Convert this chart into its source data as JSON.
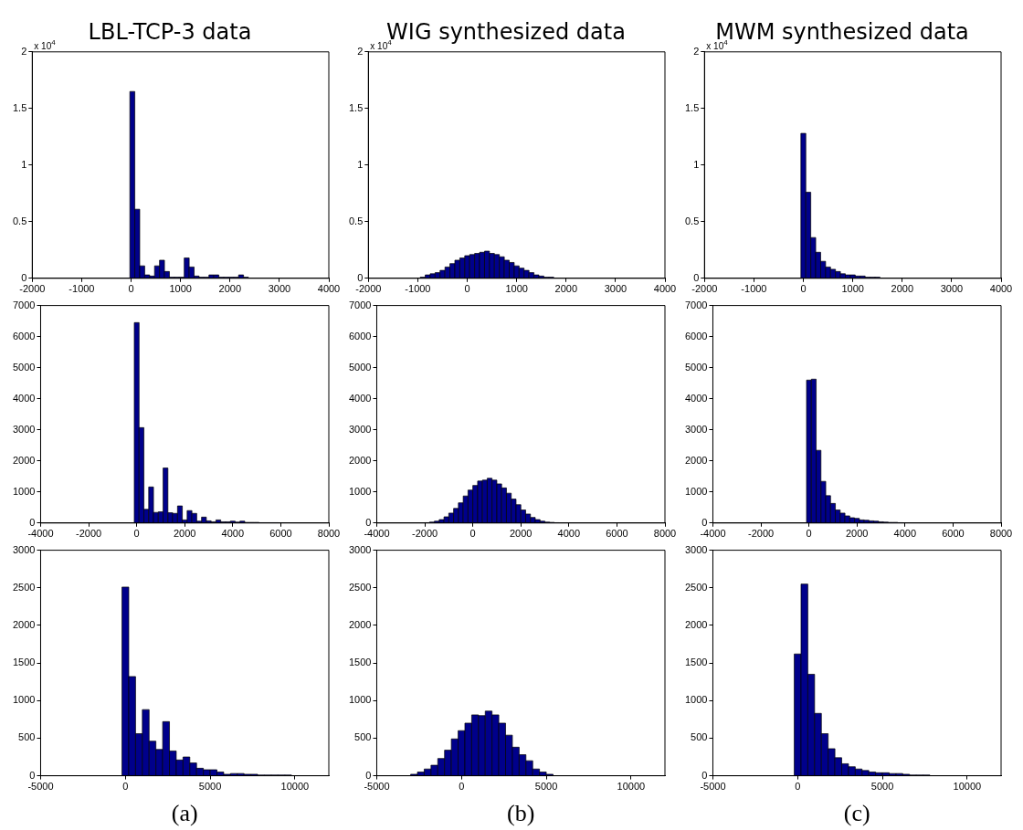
{
  "chart_data": [
    {
      "type": "histogram",
      "title": "LBL-TCP-3 data",
      "annotations": [
        "x 10$^{4}$"
      ],
      "color": "#00008b",
      "grid": false,
      "xlim": [
        -2000,
        4000
      ],
      "xticks": [
        -2000,
        -1000,
        0,
        1000,
        2000,
        3000,
        4000
      ],
      "ylim": [
        0,
        2
      ],
      "yticks": [
        0,
        0.5,
        1,
        1.5,
        2
      ],
      "bins": [
        -25,
        75,
        175,
        275,
        375,
        475,
        575,
        675,
        775,
        875,
        975,
        1075,
        1175,
        1275,
        1375,
        1475,
        1575,
        1675,
        1775,
        1875,
        1975,
        2075,
        2175,
        2275,
        2375
      ],
      "values": [
        1.65,
        0.61,
        0.11,
        0.03,
        0.02,
        0.11,
        0.16,
        0.06,
        0.01,
        0.01,
        0.01,
        0.18,
        0.1,
        0.02,
        0.01,
        0.01,
        0.03,
        0.03,
        0.01,
        0.01,
        0.01,
        0.01,
        0.03,
        0.01
      ]
    },
    {
      "type": "histogram",
      "title": "WIG synthesized data",
      "annotations": [
        "x 10$^{4}$"
      ],
      "color": "#00008b",
      "grid": false,
      "xlim": [
        -2000,
        4000
      ],
      "xticks": [
        -2000,
        -1000,
        0,
        1000,
        2000,
        3000,
        4000
      ],
      "ylim": [
        0,
        2
      ],
      "yticks": [
        0,
        0.5,
        1,
        1.5,
        2
      ],
      "bins": [
        -950,
        -850,
        -750,
        -650,
        -550,
        -450,
        -350,
        -250,
        -150,
        -50,
        50,
        150,
        250,
        350,
        450,
        550,
        650,
        750,
        850,
        950,
        1050,
        1150,
        1250,
        1350,
        1450,
        1550,
        1650,
        1750
      ],
      "values": [
        0.01,
        0.03,
        0.04,
        0.05,
        0.07,
        0.1,
        0.13,
        0.16,
        0.18,
        0.2,
        0.21,
        0.22,
        0.23,
        0.24,
        0.22,
        0.21,
        0.19,
        0.16,
        0.14,
        0.11,
        0.09,
        0.07,
        0.05,
        0.03,
        0.02,
        0.01,
        0.01
      ]
    },
    {
      "type": "histogram",
      "title": "MWM synthesized data",
      "annotations": [
        "x 10$^{4}$"
      ],
      "color": "#00008b",
      "grid": false,
      "xlim": [
        -2000,
        4000
      ],
      "xticks": [
        -2000,
        -1000,
        0,
        1000,
        2000,
        3000,
        4000
      ],
      "ylim": [
        0,
        2
      ],
      "yticks": [
        0,
        0.5,
        1,
        1.5,
        2
      ],
      "bins": [
        -50,
        50,
        150,
        250,
        350,
        450,
        550,
        650,
        750,
        850,
        950,
        1050,
        1150,
        1250,
        1350,
        1450,
        1550
      ],
      "values": [
        1.28,
        0.76,
        0.36,
        0.23,
        0.15,
        0.1,
        0.08,
        0.06,
        0.04,
        0.03,
        0.03,
        0.02,
        0.02,
        0.01,
        0.01,
        0.01
      ]
    },
    {
      "type": "histogram",
      "color": "#00008b",
      "grid": false,
      "xlim": [
        -4000,
        8000
      ],
      "xticks": [
        -4000,
        -2000,
        0,
        2000,
        4000,
        6000,
        8000
      ],
      "ylim": [
        0,
        7000
      ],
      "yticks": [
        0,
        1000,
        2000,
        3000,
        4000,
        5000,
        6000,
        7000
      ],
      "bins": [
        -100,
        100,
        300,
        500,
        700,
        900,
        1100,
        1300,
        1500,
        1700,
        1900,
        2100,
        2300,
        2500,
        2700,
        2900,
        3100,
        3300,
        3500,
        3700,
        3900,
        4100,
        4300,
        4500,
        4700,
        4900,
        5100,
        5300,
        5500,
        5700,
        5900
      ],
      "values": [
        6450,
        3070,
        440,
        1160,
        340,
        360,
        1770,
        330,
        310,
        550,
        100,
        400,
        310,
        60,
        190,
        70,
        40,
        100,
        40,
        40,
        60,
        30,
        60,
        20,
        20,
        20,
        10,
        10,
        10,
        10
      ]
    },
    {
      "type": "histogram",
      "color": "#00008b",
      "grid": false,
      "xlim": [
        -4000,
        8000
      ],
      "xticks": [
        -4000,
        -2000,
        0,
        2000,
        4000,
        6000,
        8000
      ],
      "ylim": [
        0,
        7000
      ],
      "yticks": [
        0,
        1000,
        2000,
        3000,
        4000,
        5000,
        6000,
        7000
      ],
      "bins": [
        -2000,
        -1800,
        -1600,
        -1400,
        -1200,
        -1000,
        -800,
        -600,
        -400,
        -200,
        0,
        200,
        400,
        600,
        800,
        1000,
        1200,
        1400,
        1600,
        1800,
        2000,
        2200,
        2400,
        2600,
        2800,
        3000,
        3200,
        3400,
        3600
      ],
      "values": [
        10,
        30,
        60,
        110,
        200,
        320,
        470,
        650,
        870,
        1060,
        1210,
        1350,
        1380,
        1440,
        1380,
        1260,
        1130,
        960,
        770,
        590,
        420,
        290,
        180,
        110,
        60,
        30,
        20,
        10
      ]
    },
    {
      "type": "histogram",
      "color": "#00008b",
      "grid": false,
      "xlim": [
        -4000,
        8000
      ],
      "xticks": [
        -4000,
        -2000,
        0,
        2000,
        4000,
        6000,
        8000
      ],
      "ylim": [
        0,
        7000
      ],
      "yticks": [
        0,
        1000,
        2000,
        3000,
        4000,
        5000,
        6000,
        7000
      ],
      "bins": [
        -100,
        100,
        300,
        500,
        700,
        900,
        1100,
        1300,
        1500,
        1700,
        1900,
        2100,
        2300,
        2500,
        2700,
        2900,
        3100,
        3300,
        3500,
        3700,
        3900
      ],
      "values": [
        4600,
        4630,
        2340,
        1340,
        880,
        630,
        420,
        320,
        230,
        170,
        150,
        100,
        90,
        70,
        60,
        40,
        30,
        20,
        20,
        10
      ]
    },
    {
      "type": "histogram",
      "xlabel": "(a)",
      "color": "#00008b",
      "grid": false,
      "xlim": [
        -5000,
        12000
      ],
      "xticks": [
        -5000,
        0,
        5000,
        10000
      ],
      "ylim": [
        0,
        3000
      ],
      "yticks": [
        0,
        500,
        1000,
        1500,
        2000,
        2500,
        3000
      ],
      "bins": [
        -200,
        200,
        600,
        1000,
        1400,
        1800,
        2200,
        2600,
        3000,
        3400,
        3800,
        4200,
        4600,
        5000,
        5400,
        5800,
        6200,
        6600,
        7000,
        7400,
        7800,
        8200,
        8600,
        9000,
        9400,
        9800
      ],
      "values": [
        2510,
        1320,
        560,
        880,
        460,
        350,
        720,
        330,
        210,
        250,
        170,
        100,
        80,
        80,
        50,
        20,
        30,
        30,
        20,
        20,
        10,
        10,
        10,
        10,
        10
      ]
    },
    {
      "type": "histogram",
      "xlabel": "(b)",
      "color": "#00008b",
      "grid": false,
      "xlim": [
        -5000,
        12000
      ],
      "xticks": [
        -5000,
        0,
        5000,
        10000
      ],
      "ylim": [
        0,
        3000
      ],
      "yticks": [
        0,
        500,
        1000,
        1500,
        2000,
        2500,
        3000
      ],
      "bins": [
        -3000,
        -2600,
        -2200,
        -1800,
        -1400,
        -1000,
        -600,
        -200,
        200,
        600,
        1000,
        1400,
        1800,
        2200,
        2600,
        3000,
        3400,
        3800,
        4200,
        4600,
        5000,
        5400
      ],
      "values": [
        20,
        50,
        90,
        140,
        230,
        340,
        490,
        600,
        700,
        810,
        800,
        860,
        810,
        700,
        540,
        380,
        280,
        200,
        90,
        50,
        20
      ]
    },
    {
      "type": "histogram",
      "xlabel": "(c)",
      "color": "#00008b",
      "grid": false,
      "xlim": [
        -5000,
        12000
      ],
      "xticks": [
        -5000,
        0,
        5000,
        10000
      ],
      "ylim": [
        0,
        3000
      ],
      "yticks": [
        0,
        500,
        1000,
        1500,
        2000,
        2500,
        3000
      ],
      "bins": [
        -200,
        200,
        600,
        1000,
        1400,
        1800,
        2200,
        2600,
        3000,
        3400,
        3800,
        4200,
        4600,
        5000,
        5400,
        5800,
        6200,
        6600,
        7000,
        7400,
        7800
      ],
      "values": [
        1620,
        2550,
        1350,
        830,
        560,
        360,
        240,
        160,
        120,
        90,
        70,
        50,
        40,
        40,
        30,
        30,
        20,
        10,
        10,
        10
      ]
    }
  ]
}
